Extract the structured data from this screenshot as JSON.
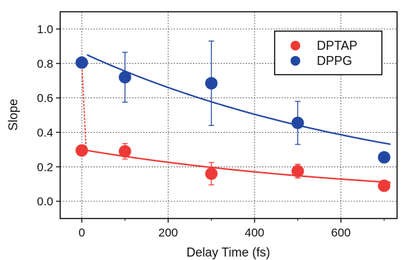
{
  "chart_data": {
    "type": "scatter",
    "title": "",
    "xlabel": "Delay Time (fs)",
    "ylabel": "Slope",
    "xlim": [
      -50,
      730
    ],
    "ylim": [
      -0.1,
      1.1
    ],
    "xticks": [
      0,
      200,
      400,
      600
    ],
    "xtick_labels": [
      "0",
      "200",
      "400",
      "600"
    ],
    "yticks": [
      0.0,
      0.2,
      0.4,
      0.6,
      0.8,
      1.0
    ],
    "ytick_labels": [
      "0.0",
      "0.2",
      "0.4",
      "0.6",
      "0.8",
      "1.0"
    ],
    "grid": true,
    "legend_position": "top-right",
    "series": [
      {
        "name": "DPTAP",
        "color": "#ee3a36",
        "points": [
          {
            "x": 0,
            "y": 0.295,
            "err": 0.03
          },
          {
            "x": 100,
            "y": 0.29,
            "err": 0.045
          },
          {
            "x": 300,
            "y": 0.16,
            "err": 0.065
          },
          {
            "x": 500,
            "y": 0.175,
            "err": 0.04
          },
          {
            "x": 700,
            "y": 0.09,
            "err": 0.0
          }
        ],
        "fit": {
          "x": [
            0,
            715
          ],
          "y0": 0.3,
          "decay_fs": 710
        }
      },
      {
        "name": "DPPG",
        "color": "#2348a3",
        "points": [
          {
            "x": 0,
            "y": 0.805,
            "err": 0.0
          },
          {
            "x": 100,
            "y": 0.72,
            "err": 0.145
          },
          {
            "x": 300,
            "y": 0.685,
            "err": 0.245
          },
          {
            "x": 500,
            "y": 0.455,
            "err": 0.125
          },
          {
            "x": 700,
            "y": 0.255,
            "err": 0.0
          }
        ],
        "fit": {
          "x": [
            12,
            715
          ],
          "y0": 0.85,
          "decay_fs": 745
        }
      }
    ],
    "connector": {
      "color": "#ee3a36",
      "from": {
        "x": 0,
        "y": 0.805
      },
      "to": {
        "x": 10,
        "y": 0.3
      }
    }
  },
  "legend": {
    "items": [
      {
        "label": "DPTAP",
        "color": "#ee3a36"
      },
      {
        "label": "DPPG",
        "color": "#2348a3"
      }
    ]
  }
}
